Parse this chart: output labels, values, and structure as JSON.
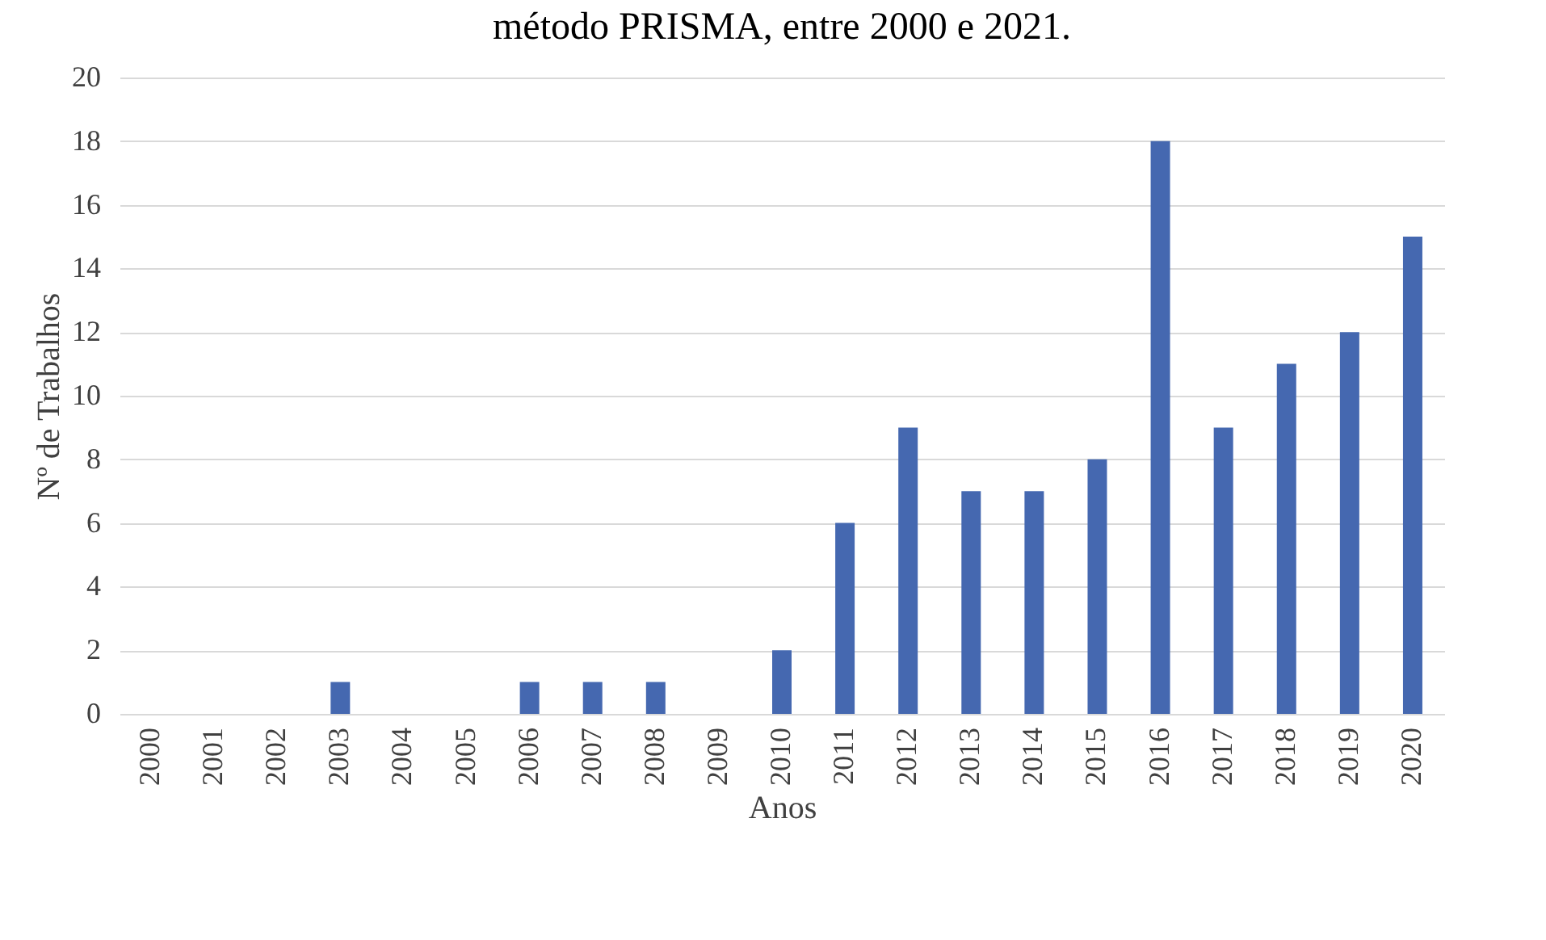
{
  "chart_data": {
    "type": "bar",
    "title": "método PRISMA, entre 2000 e 2021.",
    "xlabel": "Anos",
    "ylabel": "Nº de Trabalhos",
    "categories": [
      "2000",
      "2001",
      "2002",
      "2003",
      "2004",
      "2005",
      "2006",
      "2007",
      "2008",
      "2009",
      "2010",
      "2011",
      "2012",
      "2013",
      "2014",
      "2015",
      "2016",
      "2017",
      "2018",
      "2019",
      "2020"
    ],
    "values": [
      0,
      0,
      0,
      1,
      0,
      0,
      1,
      1,
      1,
      0,
      2,
      6,
      9,
      7,
      7,
      8,
      18,
      9,
      11,
      12,
      15
    ],
    "color": "#4568b0",
    "ylim": [
      0,
      20
    ],
    "yticks": [
      0,
      2,
      4,
      6,
      8,
      10,
      12,
      14,
      16,
      18,
      20
    ],
    "grid": "y"
  }
}
